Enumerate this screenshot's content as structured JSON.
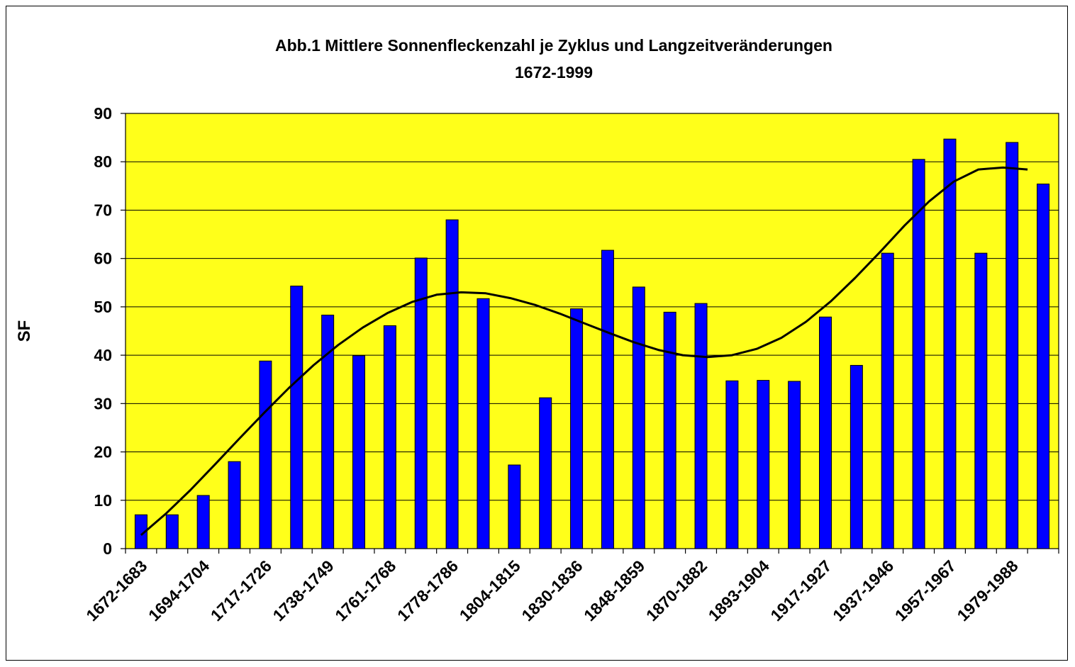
{
  "chart_data": {
    "type": "bar",
    "title": "Abb.1 Mittlere Sonnenfleckenzahl je Zyklus und Langzeitveränderungen",
    "subtitle": "1672-1999",
    "xlabel": "",
    "ylabel": "SF",
    "ylim": [
      0,
      90
    ],
    "yticks": [
      0,
      10,
      20,
      30,
      40,
      50,
      60,
      70,
      80,
      90
    ],
    "grid": true,
    "legend": "none",
    "tick_labels": [
      "1672-1683",
      "1694-1704",
      "1717-1726",
      "1738-1749",
      "1761-1768",
      "1778-1786",
      "1804-1815",
      "1830-1836",
      "1848-1859",
      "1870-1882",
      "1893-1904",
      "1917-1927",
      "1937-1946",
      "1957-1967",
      "1979-1988"
    ],
    "values": [
      7,
      7,
      11,
      18,
      38.8,
      54.3,
      48.3,
      39.9,
      46.1,
      60.1,
      68,
      51.7,
      17.3,
      31.2,
      49.6,
      61.7,
      54.1,
      48.9,
      50.7,
      34.7,
      34.8,
      34.6,
      47.9,
      37.9,
      61.1,
      80.5,
      84.7,
      61.1,
      84,
      75.4
    ],
    "trend": [
      2.8,
      7.2,
      12.1,
      17.4,
      22.8,
      28.1,
      33.2,
      37.9,
      42.1,
      45.7,
      48.7,
      51.0,
      52.5,
      53.0,
      52.8,
      51.8,
      50.4,
      48.6,
      46.6,
      44.6,
      42.7,
      41.1,
      40.0,
      39.6,
      40.0,
      41.3,
      43.6,
      46.9,
      51.1,
      56.0,
      61.3,
      66.8,
      71.8,
      75.9,
      78.4,
      78.8,
      78.4
    ],
    "colors": {
      "bar": "#0000ff",
      "trend": "#000000",
      "background": "#ffff1a",
      "plot_area": "#ffff1a",
      "grid": "#000000"
    }
  }
}
